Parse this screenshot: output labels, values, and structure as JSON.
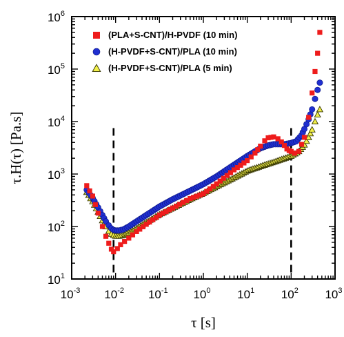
{
  "chart_data": {
    "type": "scatter",
    "title": "",
    "xlabel": "τ [s]",
    "ylabel": "τ.H(τ) [Pa.s]",
    "xscale": "log",
    "yscale": "log",
    "xlim": [
      0.001,
      1000
    ],
    "ylim": [
      10,
      1000000
    ],
    "x_ticks": [
      0.001,
      0.01,
      0.1,
      1,
      10,
      100,
      1000
    ],
    "x_tick_labels": [
      {
        "base": "10",
        "exp": "-3"
      },
      {
        "base": "10",
        "exp": "-2"
      },
      {
        "base": "10",
        "exp": "-1"
      },
      {
        "base": "10",
        "exp": "0"
      },
      {
        "base": "10",
        "exp": "1"
      },
      {
        "base": "10",
        "exp": "2"
      },
      {
        "base": "10",
        "exp": "3"
      }
    ],
    "y_ticks": [
      10,
      100,
      1000,
      10000,
      100000,
      1000000
    ],
    "y_tick_labels": [
      {
        "base": "10",
        "exp": "1"
      },
      {
        "base": "10",
        "exp": "2"
      },
      {
        "base": "10",
        "exp": "3"
      },
      {
        "base": "10",
        "exp": "4"
      },
      {
        "base": "10",
        "exp": "5"
      },
      {
        "base": "10",
        "exp": "6"
      }
    ],
    "grid": false,
    "legend_position": "top-right",
    "vertical_lines": [
      0.009,
      100
    ],
    "series": [
      {
        "name": "(PLA+S-CNT)/H-PVDF (10 min)",
        "marker": "square",
        "color": "#ee1c1c",
        "x": [
          0.0022,
          0.003,
          0.004,
          0.005,
          0.006,
          0.007,
          0.008,
          0.009,
          0.011,
          0.013,
          0.016,
          0.02,
          0.03,
          0.05,
          0.1,
          0.2,
          0.5,
          1,
          2,
          5,
          10,
          15,
          20,
          25,
          30,
          40,
          50,
          60,
          70,
          80,
          90,
          100,
          120,
          150,
          200,
          250,
          300,
          350,
          400,
          450
        ],
        "y": [
          600,
          380,
          180,
          100,
          65,
          48,
          37,
          33,
          38,
          45,
          52,
          60,
          80,
          110,
          165,
          225,
          340,
          420,
          650,
          1200,
          1800,
          2500,
          3400,
          4300,
          4900,
          5100,
          4700,
          4100,
          3500,
          3000,
          2800,
          2700,
          2500,
          2700,
          5000,
          12000,
          35000,
          90000,
          200000,
          500000
        ]
      },
      {
        "name": "(H-PVDF+S-CNT)/PLA (10 min)",
        "marker": "circle",
        "color": "#1f2fd0",
        "x": [
          0.0022,
          0.003,
          0.004,
          0.005,
          0.006,
          0.007,
          0.008,
          0.009,
          0.01,
          0.012,
          0.015,
          0.02,
          0.03,
          0.05,
          0.1,
          0.2,
          0.5,
          1,
          2,
          5,
          10,
          15,
          20,
          30,
          40,
          50,
          70,
          100,
          130,
          170,
          200,
          250,
          300,
          350,
          400,
          450
        ],
        "y": [
          500,
          350,
          230,
          165,
          125,
          105,
          92,
          86,
          84,
          84,
          88,
          100,
          125,
          165,
          240,
          330,
          480,
          640,
          900,
          1500,
          2200,
          2700,
          3100,
          3500,
          3700,
          3700,
          3700,
          3900,
          4200,
          5400,
          7200,
          11000,
          17000,
          27000,
          40000,
          55000
        ]
      },
      {
        "name": "(H-PVDF+S-CNT)/PLA (5 min)",
        "marker": "triangle",
        "color": "#f2f04a",
        "x": [
          0.0022,
          0.003,
          0.004,
          0.005,
          0.006,
          0.007,
          0.008,
          0.009,
          0.01,
          0.012,
          0.015,
          0.02,
          0.03,
          0.05,
          0.1,
          0.2,
          0.5,
          1,
          2,
          5,
          10,
          20,
          50,
          100,
          150,
          200,
          250,
          300,
          350,
          400,
          450
        ],
        "y": [
          450,
          300,
          190,
          130,
          100,
          82,
          72,
          68,
          66,
          66,
          68,
          76,
          92,
          120,
          170,
          225,
          330,
          430,
          580,
          850,
          1150,
          1400,
          1800,
          2200,
          2700,
          3600,
          5000,
          7000,
          10000,
          13500,
          17000
        ]
      }
    ]
  }
}
